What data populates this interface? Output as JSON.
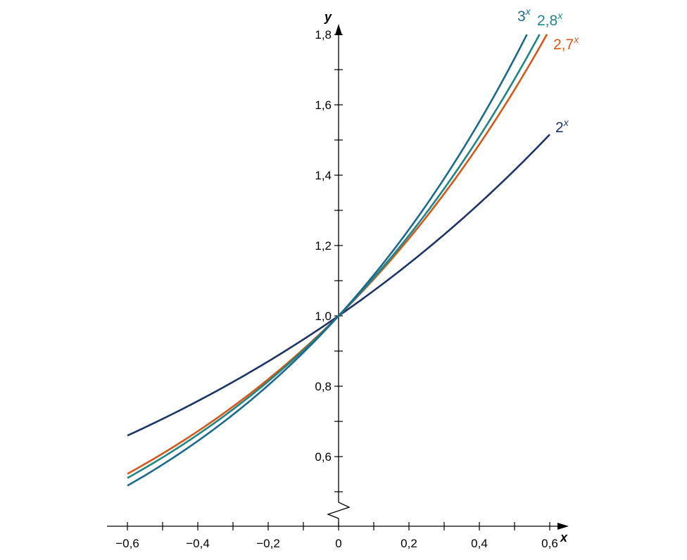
{
  "chart_data": {
    "type": "line",
    "xlabel": "x",
    "ylabel": "y",
    "xlim": [
      -0.6,
      0.6
    ],
    "ylim": [
      0.5,
      1.8
    ],
    "y_axis_break": true,
    "grid": false,
    "x_ticks": [
      -0.6,
      -0.5,
      -0.4,
      -0.3,
      -0.2,
      -0.1,
      0,
      0.1,
      0.2,
      0.3,
      0.4,
      0.5,
      0.6
    ],
    "x_tick_labels": [
      {
        "value": -0.6,
        "label": "−0,6"
      },
      {
        "value": -0.4,
        "label": "−0,4"
      },
      {
        "value": -0.2,
        "label": "−0,2"
      },
      {
        "value": 0,
        "label": "0"
      },
      {
        "value": 0.2,
        "label": "0,2"
      },
      {
        "value": 0.4,
        "label": "0,4"
      },
      {
        "value": 0.6,
        "label": "0,6"
      }
    ],
    "y_ticks": [
      0.5,
      0.6,
      0.7,
      0.8,
      0.9,
      1.0,
      1.1,
      1.2,
      1.3,
      1.4,
      1.5,
      1.6,
      1.7,
      1.8
    ],
    "y_tick_labels": [
      {
        "value": 0.6,
        "label": "0,6"
      },
      {
        "value": 0.8,
        "label": "0,8"
      },
      {
        "value": 1.0,
        "label": "1,0"
      },
      {
        "value": 1.2,
        "label": "1,2"
      },
      {
        "value": 1.4,
        "label": "1,4"
      },
      {
        "value": 1.6,
        "label": "1,6"
      },
      {
        "value": 1.8,
        "label": "1,8"
      }
    ],
    "series": [
      {
        "name": "2",
        "base": 2,
        "x_range": [
          -0.6,
          0.6
        ],
        "color": "#1c3466"
      },
      {
        "name": "2,7",
        "base": 2.7,
        "x_range": [
          -0.6,
          0.592
        ],
        "color": "#d4581a"
      },
      {
        "name": "2,8",
        "base": 2.8,
        "x_range": [
          -0.6,
          0.571
        ],
        "color": "#1f8585"
      },
      {
        "name": "3",
        "base": 3,
        "x_range": [
          -0.6,
          0.535
        ],
        "color": "#1b6a8e"
      }
    ],
    "series_label_exponent": "x"
  }
}
